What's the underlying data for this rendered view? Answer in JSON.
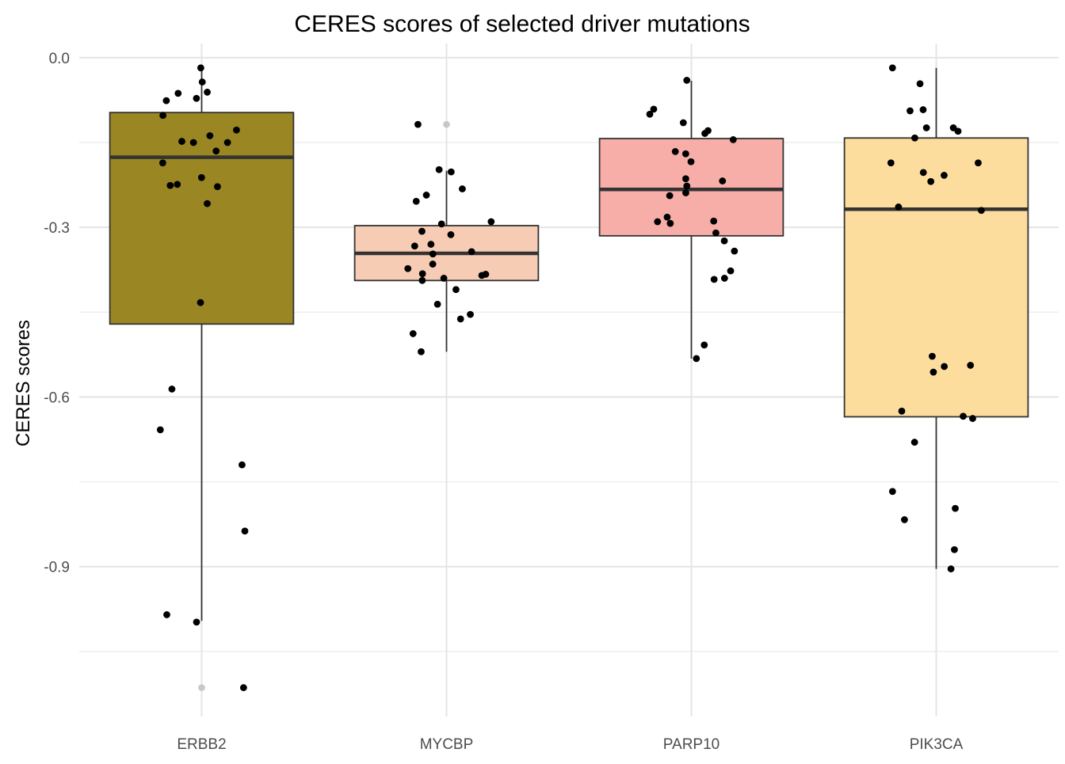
{
  "chart_data": {
    "type": "boxplot",
    "title": "CERES scores of selected driver mutations",
    "xlabel": "",
    "ylabel": "CERES scores",
    "ylim": [
      -1.165,
      0.025
    ],
    "y_ticks": [
      0.0,
      -0.3,
      -0.6,
      -0.9
    ],
    "y_tick_labels": [
      "0.0",
      "-0.3",
      "-0.6",
      "-0.9"
    ],
    "y_minor_ticks": [
      -0.15,
      -0.45,
      -0.75,
      -1.05
    ],
    "grid": true,
    "legend": "none",
    "categories": [
      "ERBB2",
      "MYCBP",
      "PARP10",
      "PIK3CA"
    ],
    "boxes": [
      {
        "name": "ERBB2",
        "fill": "#9a8622",
        "q1": -0.471,
        "median": -0.176,
        "q3": -0.097,
        "whisker_low": -0.996,
        "whisker_high": -0.018,
        "outliers": [
          -1.114
        ]
      },
      {
        "name": "MYCBP",
        "fill": "#f7ccb4",
        "q1": -0.394,
        "median": -0.346,
        "q3": -0.297,
        "whisker_low": -0.52,
        "whisker_high": -0.2,
        "outliers": [
          -0.118
        ]
      },
      {
        "name": "PARP10",
        "fill": "#f8aea8",
        "q1": -0.315,
        "median": -0.233,
        "q3": -0.143,
        "whisker_low": -0.532,
        "whisker_high": -0.041,
        "outliers": []
      },
      {
        "name": "PIK3CA",
        "fill": "#fcdd9e",
        "q1": -0.635,
        "median": -0.268,
        "q3": -0.142,
        "whisker_low": -0.904,
        "whisker_high": -0.018,
        "outliers": []
      }
    ],
    "points": [
      {
        "group": "ERBB2",
        "values": [
          -0.018,
          -0.061,
          -0.076,
          -0.063,
          -0.072,
          -0.043,
          -0.102,
          -0.128,
          -0.138,
          -0.15,
          -0.148,
          -0.15,
          -0.165,
          -0.186,
          -0.212,
          -0.224,
          -0.228,
          -0.226,
          -0.258,
          -0.433,
          -0.586,
          -0.658,
          -0.72,
          -0.837,
          -0.985,
          -0.998,
          -1.114
        ]
      },
      {
        "group": "MYCBP",
        "values": [
          -0.118,
          -0.198,
          -0.202,
          -0.232,
          -0.243,
          -0.254,
          -0.29,
          -0.294,
          -0.307,
          -0.313,
          -0.33,
          -0.333,
          -0.343,
          -0.347,
          -0.365,
          -0.373,
          -0.383,
          -0.382,
          -0.385,
          -0.39,
          -0.394,
          -0.41,
          -0.436,
          -0.454,
          -0.462,
          -0.488,
          -0.52
        ]
      },
      {
        "group": "PARP10",
        "values": [
          -0.04,
          -0.091,
          -0.1,
          -0.115,
          -0.129,
          -0.134,
          -0.145,
          -0.166,
          -0.17,
          -0.184,
          -0.214,
          -0.218,
          -0.227,
          -0.239,
          -0.244,
          -0.282,
          -0.289,
          -0.29,
          -0.293,
          -0.31,
          -0.324,
          -0.342,
          -0.377,
          -0.39,
          -0.392,
          -0.508,
          -0.532
        ]
      },
      {
        "group": "PIK3CA",
        "values": [
          -0.018,
          -0.046,
          -0.092,
          -0.094,
          -0.124,
          -0.124,
          -0.13,
          -0.142,
          -0.186,
          -0.186,
          -0.203,
          -0.208,
          -0.219,
          -0.264,
          -0.27,
          -0.528,
          -0.544,
          -0.546,
          -0.556,
          -0.625,
          -0.634,
          -0.638,
          -0.68,
          -0.767,
          -0.817,
          -0.797,
          -0.87,
          -0.904
        ]
      }
    ]
  }
}
